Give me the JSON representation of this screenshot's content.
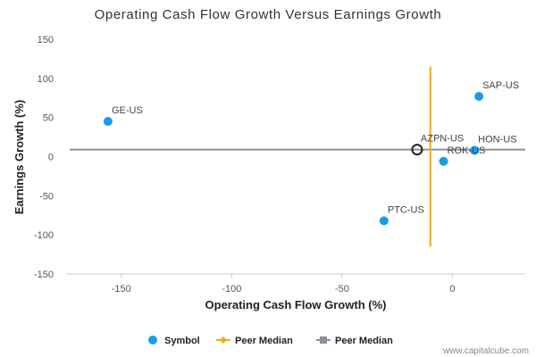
{
  "chart_data": {
    "type": "scatter",
    "title": "Operating Cash Flow Growth Versus Earnings Growth",
    "xlabel": "Operating Cash Flow Growth (%)",
    "ylabel": "Earnings Growth (%)",
    "xlim": [
      -175,
      33
    ],
    "ylim": [
      -150,
      150
    ],
    "xticks": [
      -150,
      -100,
      -50,
      0
    ],
    "yticks": [
      150,
      100,
      50,
      0,
      -50,
      -100,
      -150
    ],
    "points": [
      {
        "label": "GE-US",
        "x": -156,
        "y": 45,
        "highlight": false
      },
      {
        "label": "SAP-US",
        "x": 12,
        "y": 77,
        "highlight": false
      },
      {
        "label": "AZPN-US",
        "x": -16,
        "y": 9,
        "highlight": true
      },
      {
        "label": "HON-US",
        "x": 10,
        "y": 8,
        "highlight": false
      },
      {
        "label": "ROK-US",
        "x": -4,
        "y": -6,
        "highlight": false
      },
      {
        "label": "PTC-US",
        "x": -31,
        "y": -82,
        "highlight": false
      }
    ],
    "peer_median_x": -10,
    "peer_median_x_extent": [
      -115,
      115
    ],
    "peer_median_y": 9,
    "legend": {
      "position": "bottom-center",
      "items": [
        {
          "label": "Symbol",
          "color": "#1a9be8",
          "marker": "circle"
        },
        {
          "label": "Peer Median",
          "color": "#f5a623",
          "marker": "diamond"
        },
        {
          "label": "Peer Median",
          "color": "#8a8f9a",
          "marker": "square"
        }
      ]
    },
    "colors": {
      "point": "#1a9be8",
      "highlight_stroke": "#222222",
      "median_x": "#f5a623",
      "median_y": "#8a8f9a",
      "axis": "#c0d0e0"
    }
  },
  "credit": "www.capitalcube.com"
}
